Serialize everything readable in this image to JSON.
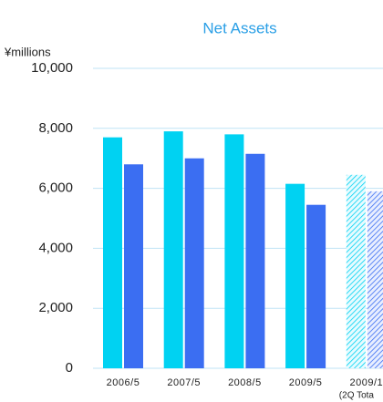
{
  "chart_data": {
    "type": "bar",
    "title": "Net Assets",
    "y_axis_label": "¥millions",
    "categories": [
      "2006/5",
      "2007/5",
      "2008/5",
      "2009/5",
      "2009/1"
    ],
    "category_notes": [
      null,
      null,
      null,
      null,
      "(2Q Tota"
    ],
    "series": [
      {
        "color": "#00d2f2",
        "values": [
          7700,
          7900,
          7800,
          6150,
          6450
        ]
      },
      {
        "color": "#3b6ef2",
        "values": [
          6800,
          7000,
          7150,
          5450,
          5900
        ]
      }
    ],
    "hatched_category": 4,
    "ylim": [
      0,
      10000
    ],
    "yticks": [
      0,
      {
        "value": 2000,
        "label": "2,000"
      },
      {
        "value": 4000,
        "label": "4,000"
      },
      {
        "value": 6000,
        "label": "6,000"
      },
      {
        "value": 8000,
        "label": "8,000"
      },
      {
        "value": 10000,
        "label": "10,000"
      }
    ],
    "grid": true
  }
}
